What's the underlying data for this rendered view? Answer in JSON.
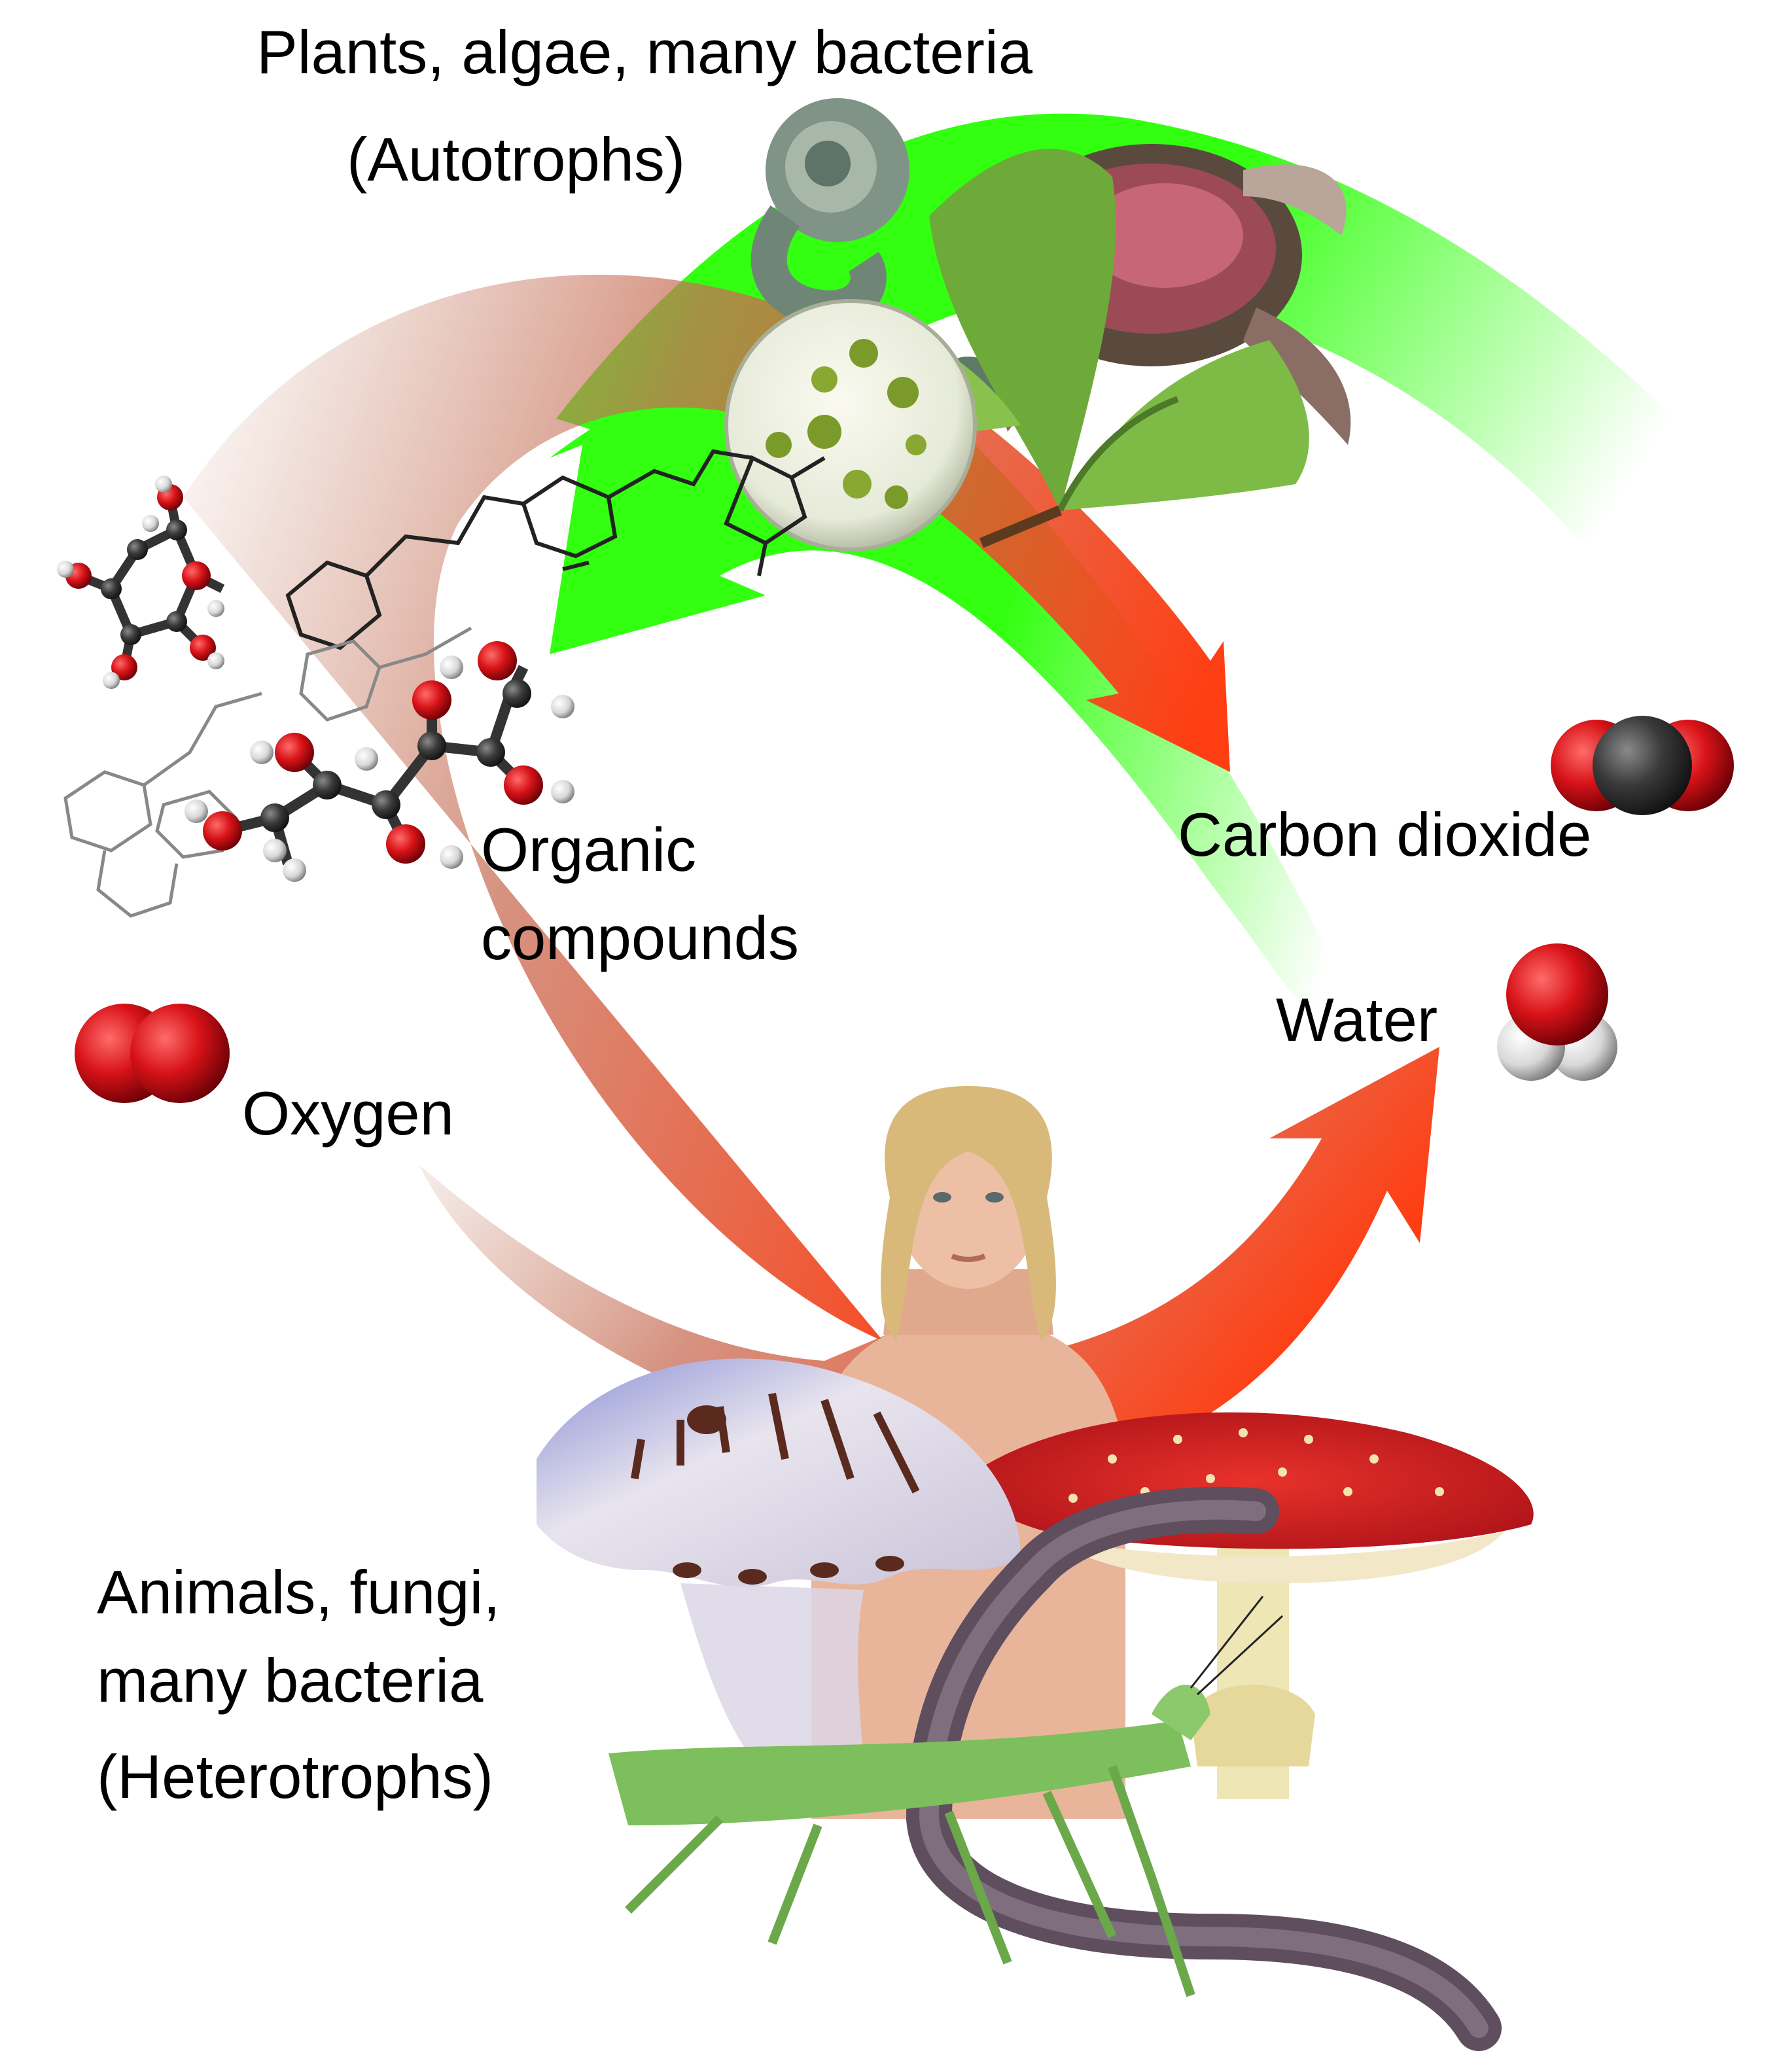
{
  "autotrophs": {
    "line1": "Plants, algae, many bacteria",
    "line2": "(Autotrophs)"
  },
  "heterotrophs": {
    "line1": "Animals, fungi,",
    "line2": "many bacteria",
    "line3": "(Heterotrophs)"
  },
  "molecules": {
    "organic_line1": "Organic",
    "organic_line2": "compounds",
    "oxygen": "Oxygen",
    "carbon_dioxide": "Carbon dioxide",
    "water": "Water"
  },
  "colors": {
    "photosynthesis_arrow": "#33ff11",
    "respiration_arrow": "#ff3d12",
    "fade_brown": "#c58a72",
    "oxygen_atom": "#d81318",
    "carbon_atom": "#3a3a3a",
    "hydrogen_atom": "#d8d8d8"
  }
}
